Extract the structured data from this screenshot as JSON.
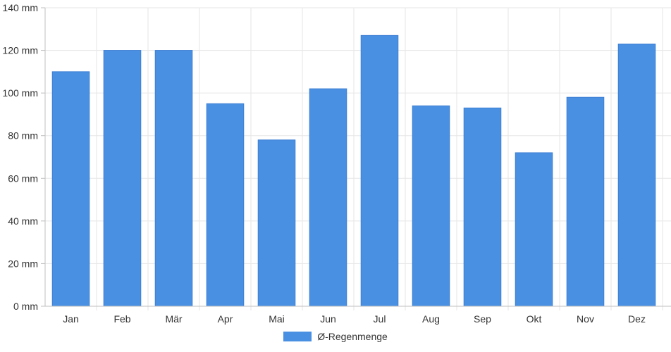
{
  "chart_data": {
    "type": "bar",
    "categories": [
      "Jan",
      "Feb",
      "Mär",
      "Apr",
      "Mai",
      "Jun",
      "Jul",
      "Aug",
      "Sep",
      "Okt",
      "Nov",
      "Dez"
    ],
    "series": [
      {
        "name": "Ø-Regenmenge",
        "values": [
          110,
          120,
          120,
          95,
          78,
          102,
          127,
          94,
          93,
          72,
          98,
          123
        ]
      }
    ],
    "ylim": [
      0,
      140
    ],
    "yticks": [
      0,
      20,
      40,
      60,
      80,
      100,
      120,
      140
    ],
    "ytick_labels": [
      "0 mm",
      "20 mm",
      "40 mm",
      "60 mm",
      "80 mm",
      "100 mm",
      "120 mm",
      "140 mm"
    ],
    "grid": true,
    "legend_position": "bottom",
    "bar_color": "#4a90e2",
    "grid_color": "#e6e6e6",
    "axis_color": "#bfbfbf"
  }
}
